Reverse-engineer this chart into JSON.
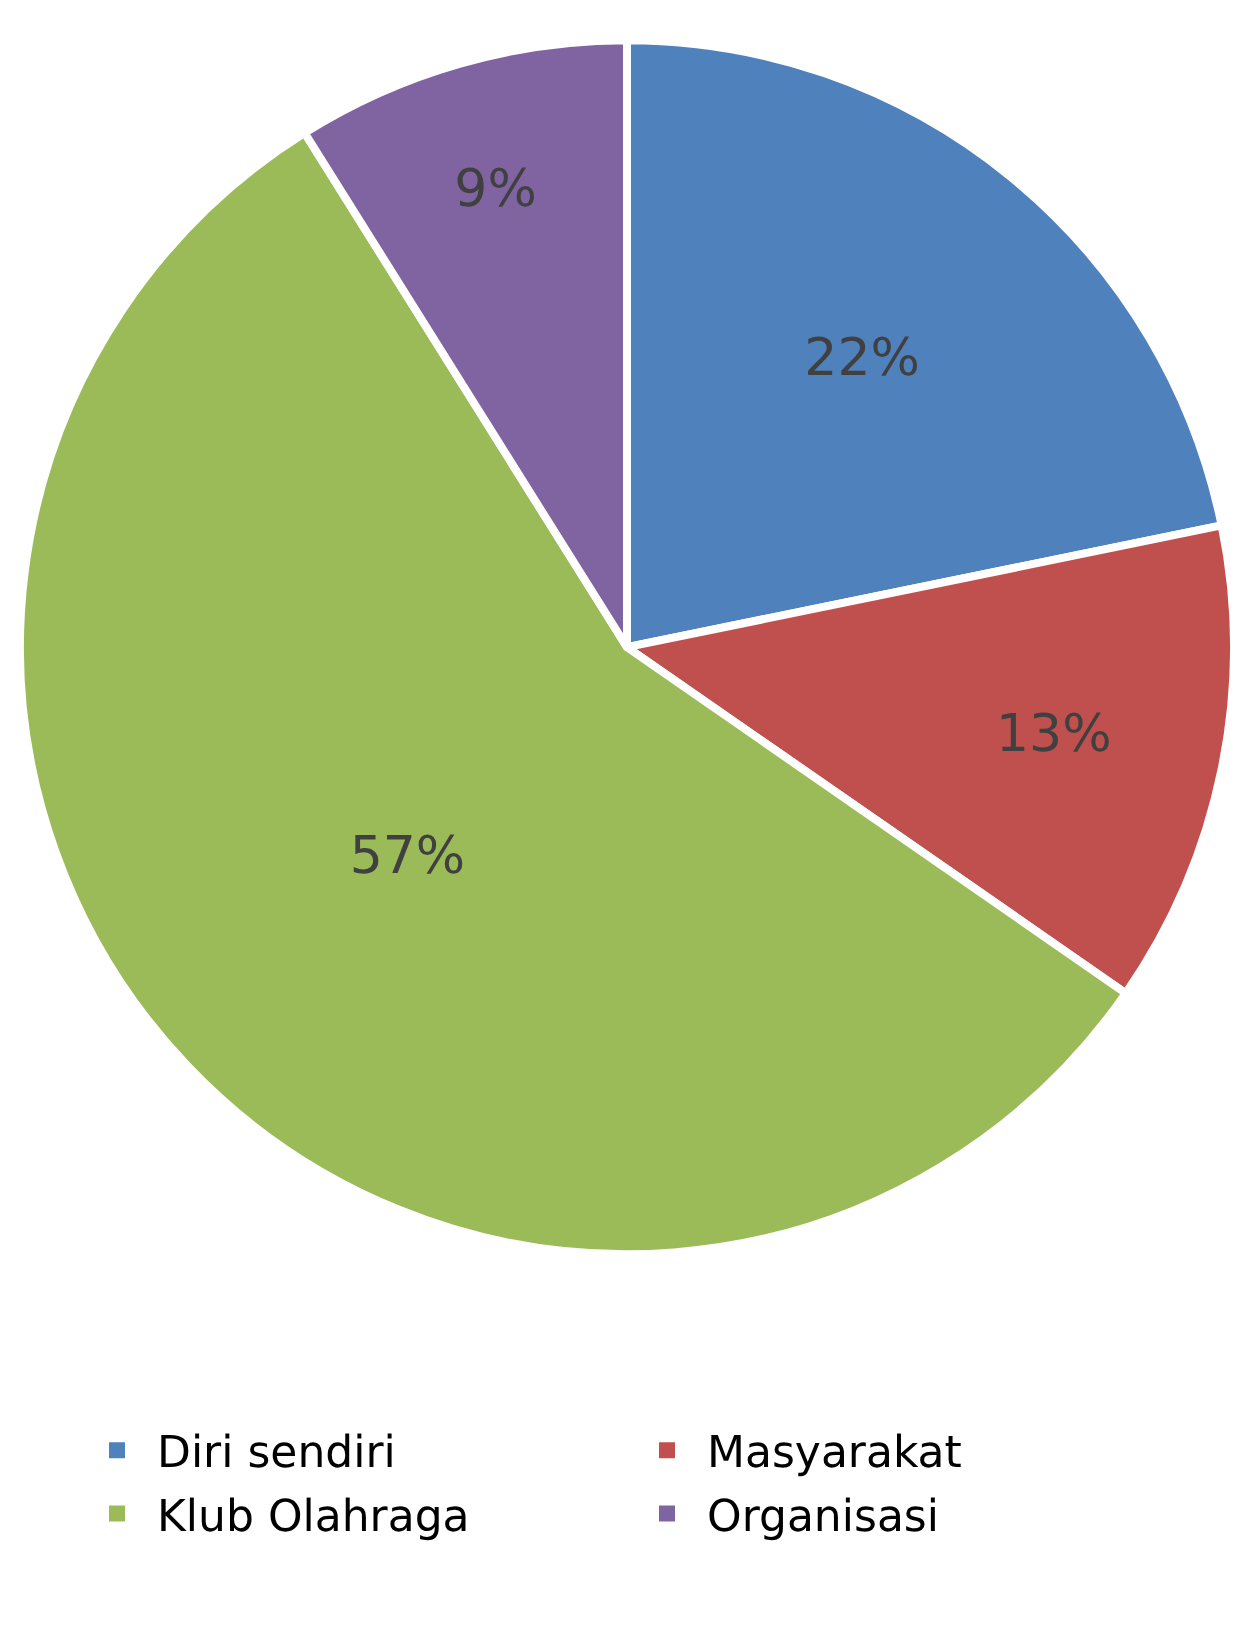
{
  "chart_data": {
    "type": "pie",
    "categories": [
      "Diri sendiri",
      "Masyarakat",
      "Klub Olahraga",
      "Organisasi"
    ],
    "values": [
      22,
      13,
      57,
      9
    ],
    "value_labels": [
      "22%",
      "13%",
      "57%",
      "9%"
    ],
    "colors": [
      "#4f81bd",
      "#c0504d",
      "#9bbb59",
      "#8064a2"
    ],
    "legend": "bottom"
  }
}
